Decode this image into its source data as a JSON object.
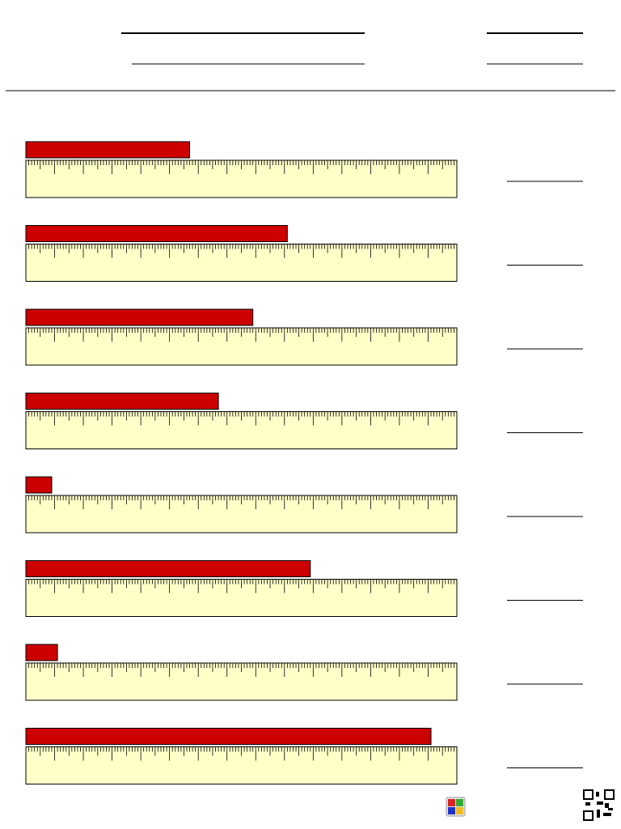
{
  "ruler": {
    "max": 15,
    "subdivisions": 10
  },
  "bars": [
    5.7,
    9.1,
    7.9,
    6.7,
    0.9,
    9.9,
    1.1,
    14.1
  ]
}
